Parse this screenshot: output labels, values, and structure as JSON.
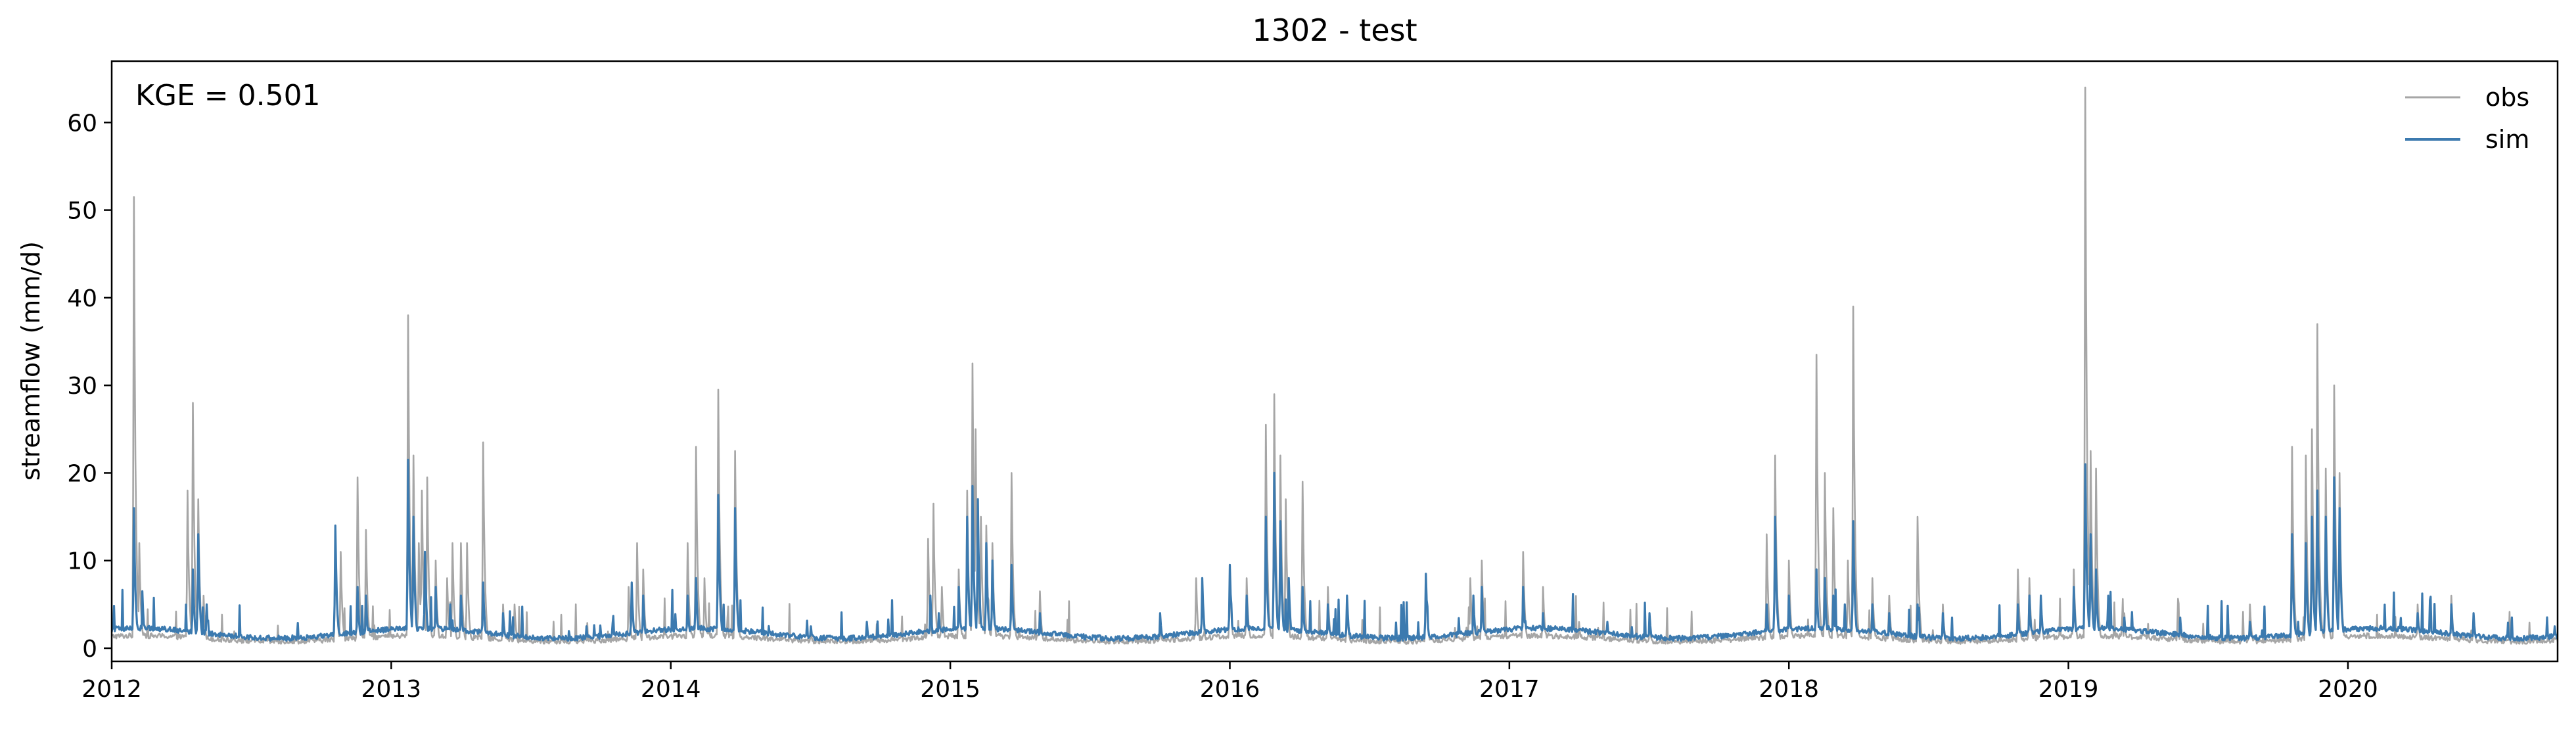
{
  "chart_data": {
    "type": "line",
    "title": "1302 - test",
    "xlabel": "",
    "ylabel": "streamflow (mm/d)",
    "annotation": "KGE = 0.501",
    "xlim": [
      2012.0,
      2020.75
    ],
    "ylim": [
      -1.5,
      67
    ],
    "x_ticks": [
      "2012",
      "2013",
      "2014",
      "2015",
      "2016",
      "2017",
      "2018",
      "2019",
      "2020"
    ],
    "y_ticks": [
      "0",
      "10",
      "20",
      "30",
      "40",
      "50",
      "60"
    ],
    "grid": false,
    "legend_position": "top-right",
    "series": [
      {
        "name": "obs",
        "color": "#a6a6a6",
        "baseline": 0.8,
        "peaks": [
          [
            2012.08,
            51.5
          ],
          [
            2012.1,
            12
          ],
          [
            2012.27,
            18
          ],
          [
            2012.29,
            28
          ],
          [
            2012.31,
            17
          ],
          [
            2012.33,
            6
          ],
          [
            2012.8,
            12
          ],
          [
            2012.82,
            11
          ],
          [
            2012.88,
            19.5
          ],
          [
            2012.91,
            13.5
          ],
          [
            2013.06,
            38
          ],
          [
            2013.08,
            22
          ],
          [
            2013.1,
            12
          ],
          [
            2013.11,
            18
          ],
          [
            2013.13,
            19.5
          ],
          [
            2013.16,
            10
          ],
          [
            2013.2,
            8
          ],
          [
            2013.22,
            12
          ],
          [
            2013.25,
            12
          ],
          [
            2013.27,
            12
          ],
          [
            2013.33,
            23.5
          ],
          [
            2013.4,
            5
          ],
          [
            2013.44,
            5
          ],
          [
            2013.85,
            7
          ],
          [
            2013.88,
            12
          ],
          [
            2013.9,
            9
          ],
          [
            2014.06,
            12
          ],
          [
            2014.09,
            23
          ],
          [
            2014.12,
            8
          ],
          [
            2014.17,
            29.5
          ],
          [
            2014.23,
            22.5
          ],
          [
            2014.5,
            2
          ],
          [
            2014.92,
            12.5
          ],
          [
            2014.94,
            16.5
          ],
          [
            2014.97,
            7
          ],
          [
            2015.03,
            9
          ],
          [
            2015.06,
            18
          ],
          [
            2015.08,
            32.5
          ],
          [
            2015.09,
            25
          ],
          [
            2015.11,
            15
          ],
          [
            2015.13,
            14
          ],
          [
            2015.15,
            12
          ],
          [
            2015.22,
            20
          ],
          [
            2015.32,
            6.5
          ],
          [
            2015.75,
            3
          ],
          [
            2015.88,
            8
          ],
          [
            2016.0,
            9
          ],
          [
            2016.06,
            8
          ],
          [
            2016.13,
            25.5
          ],
          [
            2016.16,
            29
          ],
          [
            2016.18,
            22
          ],
          [
            2016.2,
            17
          ],
          [
            2016.26,
            19
          ],
          [
            2016.35,
            7
          ],
          [
            2016.42,
            5
          ],
          [
            2016.7,
            8.5
          ],
          [
            2016.86,
            8
          ],
          [
            2016.9,
            10
          ],
          [
            2017.05,
            11
          ],
          [
            2017.12,
            7
          ],
          [
            2017.25,
            3
          ],
          [
            2017.5,
            3
          ],
          [
            2017.92,
            13
          ],
          [
            2017.95,
            22
          ],
          [
            2018.0,
            10
          ],
          [
            2018.1,
            33.5
          ],
          [
            2018.13,
            20
          ],
          [
            2018.16,
            16
          ],
          [
            2018.21,
            10
          ],
          [
            2018.23,
            39
          ],
          [
            2018.3,
            8
          ],
          [
            2018.36,
            6
          ],
          [
            2018.46,
            15
          ],
          [
            2018.55,
            5
          ],
          [
            2018.82,
            9
          ],
          [
            2018.86,
            8
          ],
          [
            2018.9,
            6
          ],
          [
            2019.02,
            9
          ],
          [
            2019.06,
            64
          ],
          [
            2019.08,
            22.5
          ],
          [
            2019.1,
            20.5
          ],
          [
            2019.2,
            4
          ],
          [
            2019.4,
            3
          ],
          [
            2019.65,
            5
          ],
          [
            2019.8,
            23
          ],
          [
            2019.85,
            22
          ],
          [
            2019.87,
            25
          ],
          [
            2019.89,
            37
          ],
          [
            2019.92,
            20.5
          ],
          [
            2019.95,
            30
          ],
          [
            2019.97,
            20
          ],
          [
            2020.25,
            5
          ],
          [
            2020.37,
            6
          ],
          [
            2020.45,
            4
          ]
        ]
      },
      {
        "name": "sim",
        "color": "#3c7aaf",
        "baseline": 1.4,
        "peaks": [
          [
            2012.08,
            16
          ],
          [
            2012.11,
            6.5
          ],
          [
            2012.29,
            9
          ],
          [
            2012.31,
            13
          ],
          [
            2012.34,
            5
          ],
          [
            2012.8,
            14
          ],
          [
            2012.88,
            7
          ],
          [
            2012.91,
            6
          ],
          [
            2013.06,
            21.5
          ],
          [
            2013.08,
            15
          ],
          [
            2013.12,
            11
          ],
          [
            2013.16,
            7
          ],
          [
            2013.21,
            5
          ],
          [
            2013.25,
            6
          ],
          [
            2013.33,
            7.5
          ],
          [
            2013.4,
            4
          ],
          [
            2013.86,
            7.5
          ],
          [
            2013.9,
            6
          ],
          [
            2014.06,
            6
          ],
          [
            2014.09,
            8
          ],
          [
            2014.17,
            17.5
          ],
          [
            2014.23,
            16
          ],
          [
            2014.5,
            2.5
          ],
          [
            2014.7,
            3
          ],
          [
            2014.93,
            6
          ],
          [
            2014.96,
            4
          ],
          [
            2015.03,
            7
          ],
          [
            2015.06,
            15
          ],
          [
            2015.08,
            18.5
          ],
          [
            2015.1,
            17
          ],
          [
            2015.13,
            12
          ],
          [
            2015.15,
            10
          ],
          [
            2015.22,
            9.5
          ],
          [
            2015.32,
            4
          ],
          [
            2015.75,
            4
          ],
          [
            2015.9,
            8
          ],
          [
            2016.0,
            9.5
          ],
          [
            2016.06,
            6
          ],
          [
            2016.13,
            15
          ],
          [
            2016.16,
            20
          ],
          [
            2016.18,
            14.5
          ],
          [
            2016.21,
            8
          ],
          [
            2016.26,
            7
          ],
          [
            2016.35,
            5
          ],
          [
            2016.42,
            6
          ],
          [
            2016.7,
            8.5
          ],
          [
            2016.87,
            6
          ],
          [
            2016.9,
            7
          ],
          [
            2017.05,
            7
          ],
          [
            2017.12,
            4
          ],
          [
            2017.35,
            3
          ],
          [
            2017.5,
            4
          ],
          [
            2017.92,
            5
          ],
          [
            2017.95,
            15
          ],
          [
            2018.0,
            6
          ],
          [
            2018.1,
            9
          ],
          [
            2018.13,
            8
          ],
          [
            2018.16,
            6
          ],
          [
            2018.2,
            5
          ],
          [
            2018.23,
            14.5
          ],
          [
            2018.3,
            5
          ],
          [
            2018.36,
            4
          ],
          [
            2018.46,
            5
          ],
          [
            2018.55,
            4
          ],
          [
            2018.82,
            5
          ],
          [
            2018.86,
            6
          ],
          [
            2018.9,
            6
          ],
          [
            2019.02,
            7
          ],
          [
            2019.06,
            21
          ],
          [
            2019.08,
            13
          ],
          [
            2019.1,
            9
          ],
          [
            2019.2,
            3.5
          ],
          [
            2019.4,
            3.5
          ],
          [
            2019.65,
            3
          ],
          [
            2019.8,
            13
          ],
          [
            2019.85,
            12
          ],
          [
            2019.87,
            15
          ],
          [
            2019.89,
            18
          ],
          [
            2019.92,
            15
          ],
          [
            2019.95,
            19.5
          ],
          [
            2019.97,
            16
          ],
          [
            2020.25,
            4
          ],
          [
            2020.37,
            5
          ],
          [
            2020.45,
            4
          ],
          [
            2020.74,
            2.5
          ]
        ]
      }
    ]
  }
}
